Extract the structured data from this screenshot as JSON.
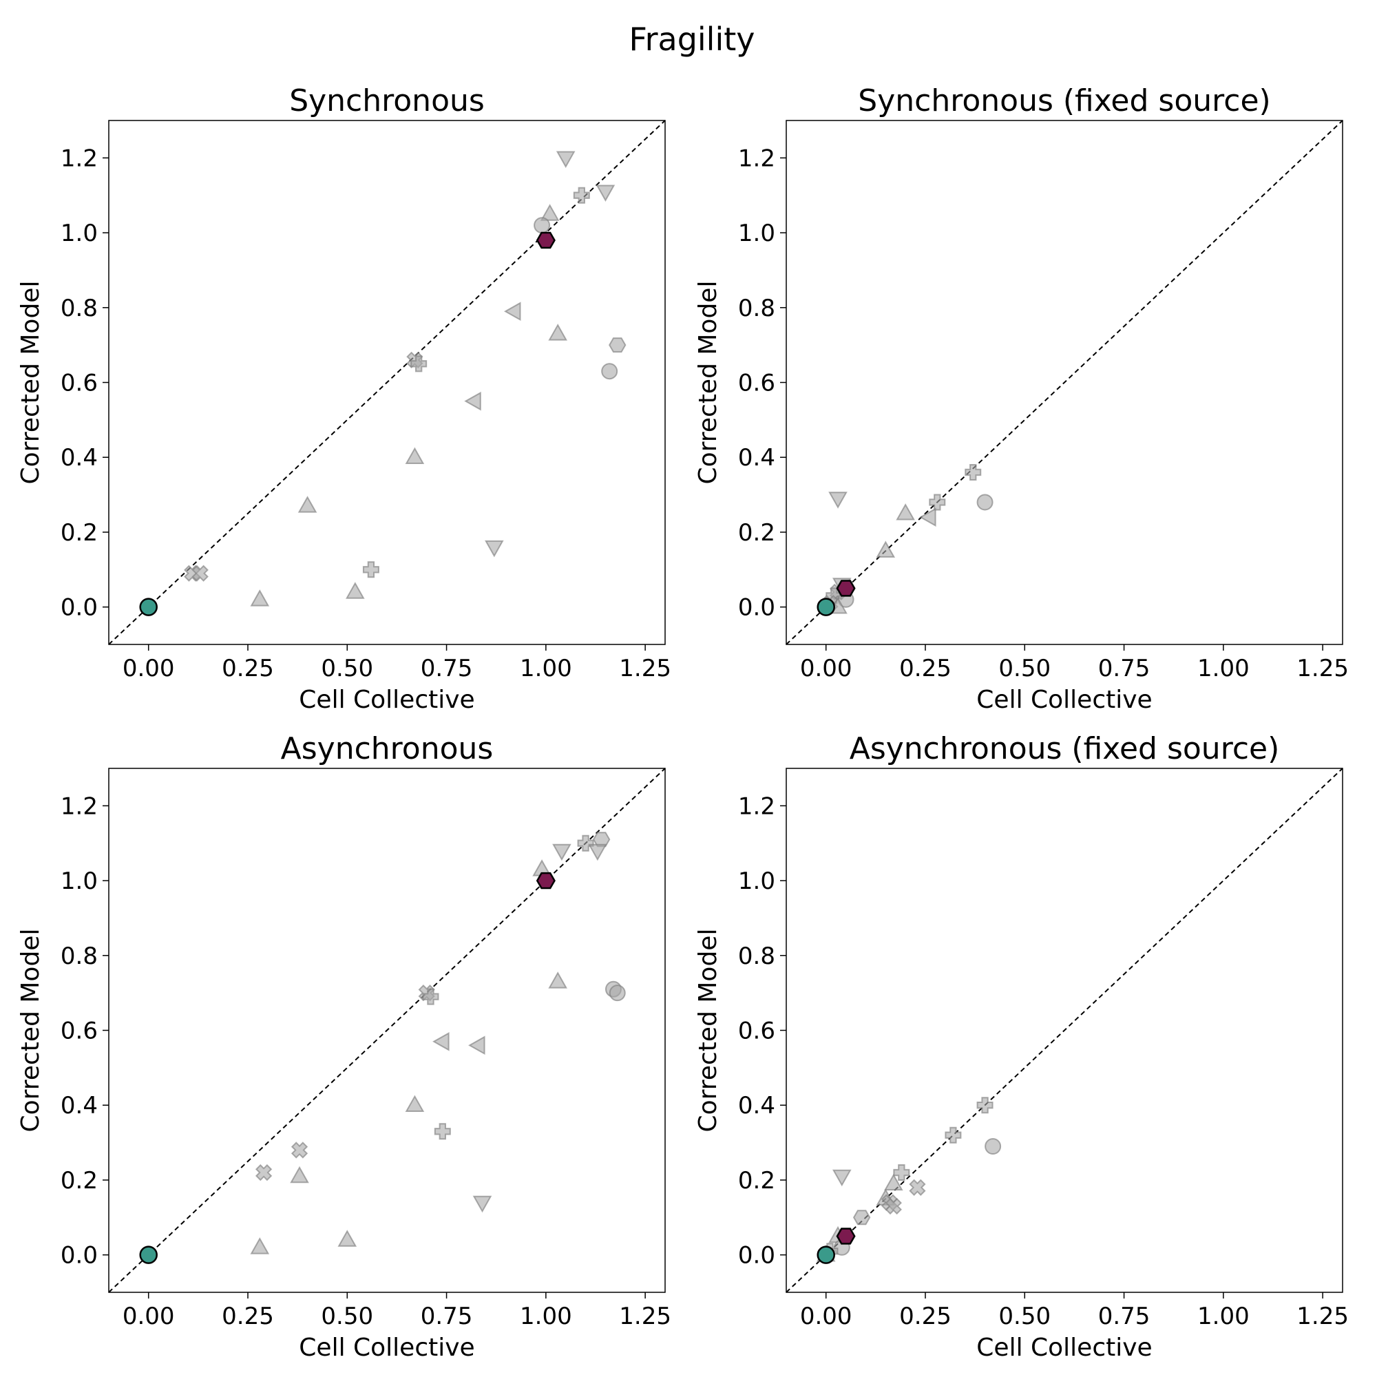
{
  "figure": {
    "title": "Fragility"
  },
  "chart_data": [
    {
      "type": "scatter",
      "title": "Synchronous",
      "xlabel": "Cell Collective",
      "ylabel": "Corrected Model",
      "xlim": [
        -0.1,
        1.3
      ],
      "ylim": [
        -0.1,
        1.3
      ],
      "xticks": [
        "0.00",
        "0.25",
        "0.50",
        "0.75",
        "1.00",
        "1.25"
      ],
      "yticks": [
        "0.0",
        "0.2",
        "0.4",
        "0.6",
        "0.8",
        "1.0",
        "1.2"
      ],
      "diagonal": "y = x (dashed)",
      "grid": false,
      "points": [
        {
          "x": 1.05,
          "y": 1.2,
          "marker": "triangle-down"
        },
        {
          "x": 1.15,
          "y": 1.11,
          "marker": "triangle-down"
        },
        {
          "x": 1.09,
          "y": 1.1,
          "marker": "plus"
        },
        {
          "x": 1.01,
          "y": 1.05,
          "marker": "triangle-up"
        },
        {
          "x": 0.99,
          "y": 1.02,
          "marker": "circle"
        },
        {
          "x": 0.92,
          "y": 0.79,
          "marker": "triangle-left"
        },
        {
          "x": 1.03,
          "y": 0.73,
          "marker": "triangle-up"
        },
        {
          "x": 1.18,
          "y": 0.7,
          "marker": "hexagon"
        },
        {
          "x": 0.67,
          "y": 0.66,
          "marker": "x"
        },
        {
          "x": 0.68,
          "y": 0.65,
          "marker": "plus"
        },
        {
          "x": 1.16,
          "y": 0.63,
          "marker": "circle"
        },
        {
          "x": 0.82,
          "y": 0.55,
          "marker": "triangle-left"
        },
        {
          "x": 0.67,
          "y": 0.4,
          "marker": "triangle-up"
        },
        {
          "x": 0.4,
          "y": 0.27,
          "marker": "triangle-up"
        },
        {
          "x": 0.87,
          "y": 0.16,
          "marker": "triangle-down"
        },
        {
          "x": 0.56,
          "y": 0.1,
          "marker": "plus"
        },
        {
          "x": 0.11,
          "y": 0.09,
          "marker": "x"
        },
        {
          "x": 0.13,
          "y": 0.09,
          "marker": "x"
        },
        {
          "x": 0.52,
          "y": 0.04,
          "marker": "triangle-up"
        },
        {
          "x": 0.28,
          "y": 0.02,
          "marker": "triangle-up"
        },
        {
          "x": 1.0,
          "y": 0.98,
          "marker": "hexagon",
          "highlight": "#7b1a4e"
        },
        {
          "x": 0.0,
          "y": 0.0,
          "marker": "circle",
          "highlight": "#3a9a8a"
        }
      ]
    },
    {
      "type": "scatter",
      "title": "Synchronous (fixed source)",
      "xlabel": "Cell Collective",
      "ylabel": "Corrected Model",
      "xlim": [
        -0.1,
        1.3
      ],
      "ylim": [
        -0.1,
        1.3
      ],
      "xticks": [
        "0.00",
        "0.25",
        "0.50",
        "0.75",
        "1.00",
        "1.25"
      ],
      "yticks": [
        "0.0",
        "0.2",
        "0.4",
        "0.6",
        "0.8",
        "1.0",
        "1.2"
      ],
      "diagonal": "y = x (dashed)",
      "grid": false,
      "points": [
        {
          "x": 0.37,
          "y": 0.36,
          "marker": "plus"
        },
        {
          "x": 0.03,
          "y": 0.29,
          "marker": "triangle-down"
        },
        {
          "x": 0.4,
          "y": 0.28,
          "marker": "circle"
        },
        {
          "x": 0.28,
          "y": 0.28,
          "marker": "plus"
        },
        {
          "x": 0.2,
          "y": 0.25,
          "marker": "triangle-up"
        },
        {
          "x": 0.26,
          "y": 0.24,
          "marker": "triangle-left"
        },
        {
          "x": 0.15,
          "y": 0.15,
          "marker": "triangle-up"
        },
        {
          "x": 0.04,
          "y": 0.06,
          "marker": "triangle-down"
        },
        {
          "x": 0.03,
          "y": 0.04,
          "marker": "x"
        },
        {
          "x": 0.02,
          "y": 0.03,
          "marker": "plus"
        },
        {
          "x": 0.05,
          "y": 0.02,
          "marker": "circle"
        },
        {
          "x": 0.01,
          "y": 0.01,
          "marker": "x"
        },
        {
          "x": 0.03,
          "y": 0.0,
          "marker": "triangle-up"
        },
        {
          "x": 0.05,
          "y": 0.05,
          "marker": "hexagon",
          "highlight": "#7b1a4e"
        },
        {
          "x": 0.0,
          "y": 0.0,
          "marker": "circle",
          "highlight": "#3a9a8a"
        }
      ]
    },
    {
      "type": "scatter",
      "title": "Asynchronous",
      "xlabel": "Cell Collective",
      "ylabel": "Corrected Model",
      "xlim": [
        -0.1,
        1.3
      ],
      "ylim": [
        -0.1,
        1.3
      ],
      "xticks": [
        "0.00",
        "0.25",
        "0.50",
        "0.75",
        "1.00",
        "1.25"
      ],
      "yticks": [
        "0.0",
        "0.2",
        "0.4",
        "0.6",
        "0.8",
        "1.0",
        "1.2"
      ],
      "diagonal": "y = x (dashed)",
      "grid": false,
      "points": [
        {
          "x": 1.14,
          "y": 1.11,
          "marker": "hexagon"
        },
        {
          "x": 1.1,
          "y": 1.1,
          "marker": "plus"
        },
        {
          "x": 1.04,
          "y": 1.08,
          "marker": "triangle-down"
        },
        {
          "x": 1.13,
          "y": 1.08,
          "marker": "triangle-down"
        },
        {
          "x": 0.99,
          "y": 1.03,
          "marker": "triangle-up"
        },
        {
          "x": 1.03,
          "y": 0.73,
          "marker": "triangle-up"
        },
        {
          "x": 1.17,
          "y": 0.71,
          "marker": "circle"
        },
        {
          "x": 1.18,
          "y": 0.7,
          "marker": "circle"
        },
        {
          "x": 0.7,
          "y": 0.7,
          "marker": "x"
        },
        {
          "x": 0.71,
          "y": 0.69,
          "marker": "plus"
        },
        {
          "x": 0.74,
          "y": 0.57,
          "marker": "triangle-left"
        },
        {
          "x": 0.83,
          "y": 0.56,
          "marker": "triangle-left"
        },
        {
          "x": 0.67,
          "y": 0.4,
          "marker": "triangle-up"
        },
        {
          "x": 0.74,
          "y": 0.33,
          "marker": "plus"
        },
        {
          "x": 0.38,
          "y": 0.28,
          "marker": "x"
        },
        {
          "x": 0.29,
          "y": 0.22,
          "marker": "x"
        },
        {
          "x": 0.38,
          "y": 0.21,
          "marker": "triangle-up"
        },
        {
          "x": 0.84,
          "y": 0.14,
          "marker": "triangle-down"
        },
        {
          "x": 0.5,
          "y": 0.04,
          "marker": "triangle-up"
        },
        {
          "x": 0.28,
          "y": 0.02,
          "marker": "triangle-up"
        },
        {
          "x": 1.0,
          "y": 1.0,
          "marker": "hexagon",
          "highlight": "#7b1a4e"
        },
        {
          "x": 0.0,
          "y": 0.0,
          "marker": "circle",
          "highlight": "#3a9a8a"
        }
      ]
    },
    {
      "type": "scatter",
      "title": "Asynchronous (fixed source)",
      "xlabel": "Cell Collective",
      "ylabel": "Corrected Model",
      "xlim": [
        -0.1,
        1.3
      ],
      "ylim": [
        -0.1,
        1.3
      ],
      "xticks": [
        "0.00",
        "0.25",
        "0.50",
        "0.75",
        "1.00",
        "1.25"
      ],
      "yticks": [
        "0.0",
        "0.2",
        "0.4",
        "0.6",
        "0.8",
        "1.0",
        "1.2"
      ],
      "diagonal": "y = x (dashed)",
      "grid": false,
      "points": [
        {
          "x": 0.4,
          "y": 0.4,
          "marker": "plus"
        },
        {
          "x": 0.32,
          "y": 0.32,
          "marker": "plus"
        },
        {
          "x": 0.42,
          "y": 0.29,
          "marker": "circle"
        },
        {
          "x": 0.19,
          "y": 0.22,
          "marker": "plus"
        },
        {
          "x": 0.04,
          "y": 0.21,
          "marker": "triangle-down"
        },
        {
          "x": 0.17,
          "y": 0.19,
          "marker": "triangle-up"
        },
        {
          "x": 0.23,
          "y": 0.18,
          "marker": "x"
        },
        {
          "x": 0.15,
          "y": 0.15,
          "marker": "triangle-up"
        },
        {
          "x": 0.16,
          "y": 0.14,
          "marker": "x"
        },
        {
          "x": 0.17,
          "y": 0.13,
          "marker": "x"
        },
        {
          "x": 0.09,
          "y": 0.1,
          "marker": "hexagon"
        },
        {
          "x": 0.03,
          "y": 0.05,
          "marker": "triangle-up"
        },
        {
          "x": 0.04,
          "y": 0.02,
          "marker": "circle"
        },
        {
          "x": 0.01,
          "y": 0.01,
          "marker": "plus"
        },
        {
          "x": 0.0,
          "y": 0.0,
          "marker": "triangle-up"
        },
        {
          "x": 0.05,
          "y": 0.05,
          "marker": "hexagon",
          "highlight": "#7b1a4e"
        },
        {
          "x": 0.0,
          "y": 0.0,
          "marker": "circle",
          "highlight": "#3a9a8a"
        }
      ]
    }
  ]
}
